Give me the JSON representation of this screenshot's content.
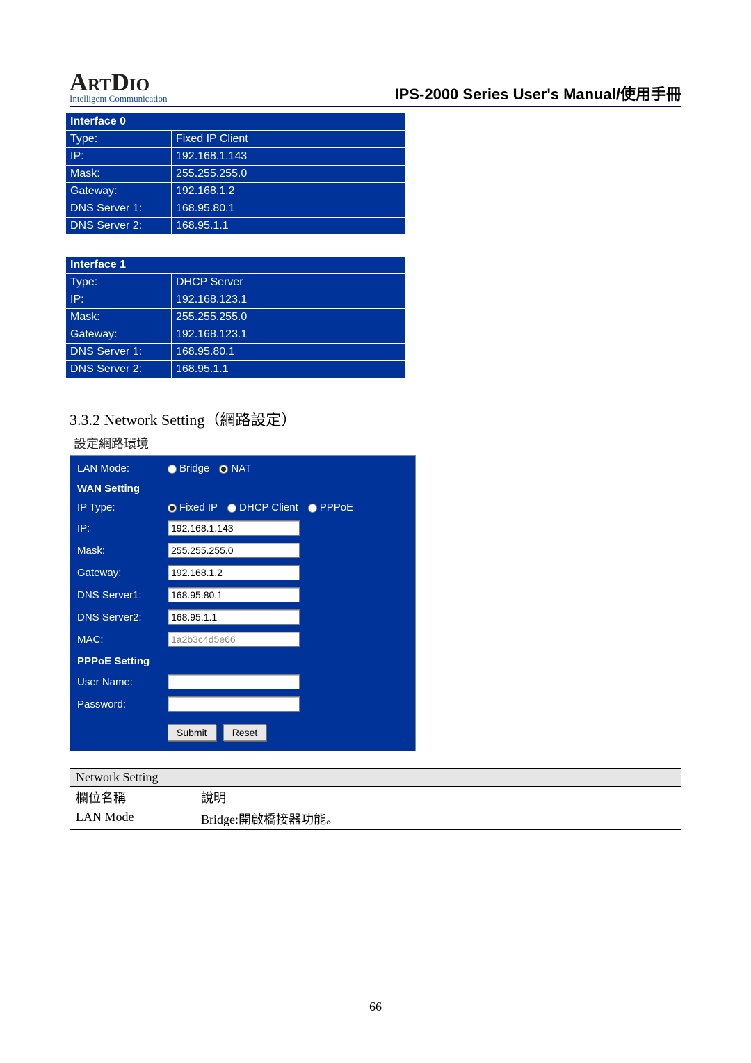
{
  "header": {
    "logo_main": "ArtDio",
    "logo_tagline": "Intelligent Communication",
    "manual_title_en": "IPS-2000 Series User's Manual",
    "manual_title_sep": "/",
    "manual_title_cn": "使用手冊"
  },
  "interface0": {
    "title": "Interface 0",
    "rows": [
      {
        "label": "Type:",
        "value": "Fixed IP Client"
      },
      {
        "label": "IP:",
        "value": "192.168.1.143"
      },
      {
        "label": "Mask:",
        "value": "255.255.255.0"
      },
      {
        "label": "Gateway:",
        "value": "192.168.1.2"
      },
      {
        "label": "DNS Server 1:",
        "value": "168.95.80.1"
      },
      {
        "label": "DNS Server 2:",
        "value": "168.95.1.1"
      }
    ]
  },
  "interface1": {
    "title": "Interface 1",
    "rows": [
      {
        "label": "Type:",
        "value": "DHCP Server"
      },
      {
        "label": "IP:",
        "value": "192.168.123.1"
      },
      {
        "label": "Mask:",
        "value": "255.255.255.0"
      },
      {
        "label": "Gateway:",
        "value": "192.168.123.1"
      },
      {
        "label": "DNS Server 1:",
        "value": "168.95.80.1"
      },
      {
        "label": "DNS Server 2:",
        "value": "168.95.1.1"
      }
    ]
  },
  "section": {
    "heading": "3.3.2 Network Setting（網路設定）",
    "sub": "設定網路環境"
  },
  "settings": {
    "lan_mode_label": "LAN Mode:",
    "lan_mode_options": {
      "bridge": "Bridge",
      "nat": "NAT"
    },
    "lan_mode_selected": "nat",
    "wan_title": "WAN Setting",
    "ip_type_label": "IP Type:",
    "ip_type_options": {
      "fixed": "Fixed IP",
      "dhcp": "DHCP Client",
      "pppoe": "PPPoE"
    },
    "ip_type_selected": "fixed",
    "fields": {
      "ip": {
        "label": "IP:",
        "value": "192.168.1.143"
      },
      "mask": {
        "label": "Mask:",
        "value": "255.255.255.0"
      },
      "gateway": {
        "label": "Gateway:",
        "value": "192.168.1.2"
      },
      "dns1": {
        "label": "DNS Server1:",
        "value": "168.95.80.1"
      },
      "dns2": {
        "label": "DNS Server2:",
        "value": "168.95.1.1"
      },
      "mac": {
        "label": "MAC:",
        "value": "1a2b3c4d5e66"
      }
    },
    "pppoe_title": "PPPoE Setting",
    "pppoe": {
      "user": {
        "label": "User Name:",
        "value": ""
      },
      "pass": {
        "label": "Password:",
        "value": ""
      }
    },
    "buttons": {
      "submit": "Submit",
      "reset": "Reset"
    }
  },
  "desc_table": {
    "title": "Network Setting",
    "col_field": "欄位名稱",
    "col_desc": "說明",
    "row_field": "LAN Mode",
    "row_desc": "Bridge:開啟橋接器功能。"
  },
  "page_number": "66",
  "colors": {
    "panel_bg": "#003399",
    "panel_text": "#ffffff",
    "page_bg": "#ffffff",
    "border_dark": "#000066"
  }
}
